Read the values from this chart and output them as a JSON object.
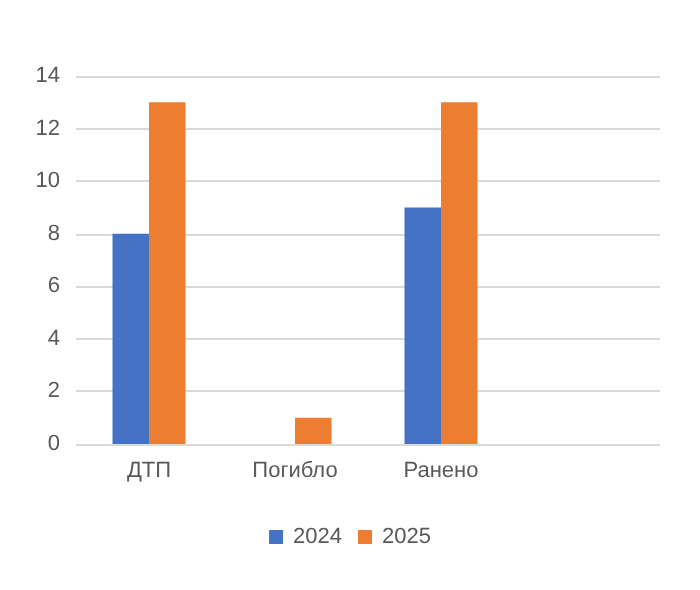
{
  "chart_data": {
    "type": "bar",
    "categories": [
      "ДТП",
      "Погибло",
      "Ранено",
      null
    ],
    "series": [
      {
        "name": "2024",
        "color": "#4472c4",
        "values": [
          8,
          0,
          9,
          null
        ]
      },
      {
        "name": "2025",
        "color": "#ed7d31",
        "values": [
          13,
          1,
          13,
          null
        ]
      }
    ],
    "ylim": [
      0,
      14
    ],
    "yticks": [
      0,
      2,
      4,
      6,
      8,
      10,
      12,
      14
    ],
    "grid": "y",
    "legend": "bottom"
  }
}
